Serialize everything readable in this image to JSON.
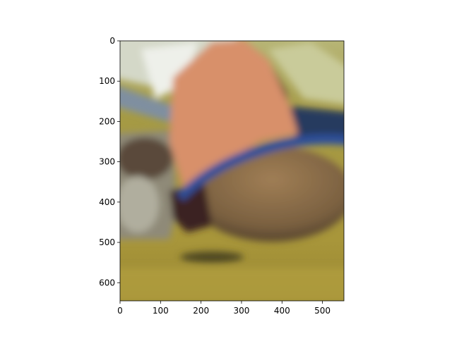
{
  "chart_data": {
    "type": "image",
    "xlim": [
      0,
      553
    ],
    "ylim": [
      645,
      0
    ],
    "xticks": [
      0,
      100,
      200,
      300,
      400,
      500
    ],
    "yticks": [
      0,
      100,
      200,
      300,
      400,
      500,
      600
    ]
  }
}
